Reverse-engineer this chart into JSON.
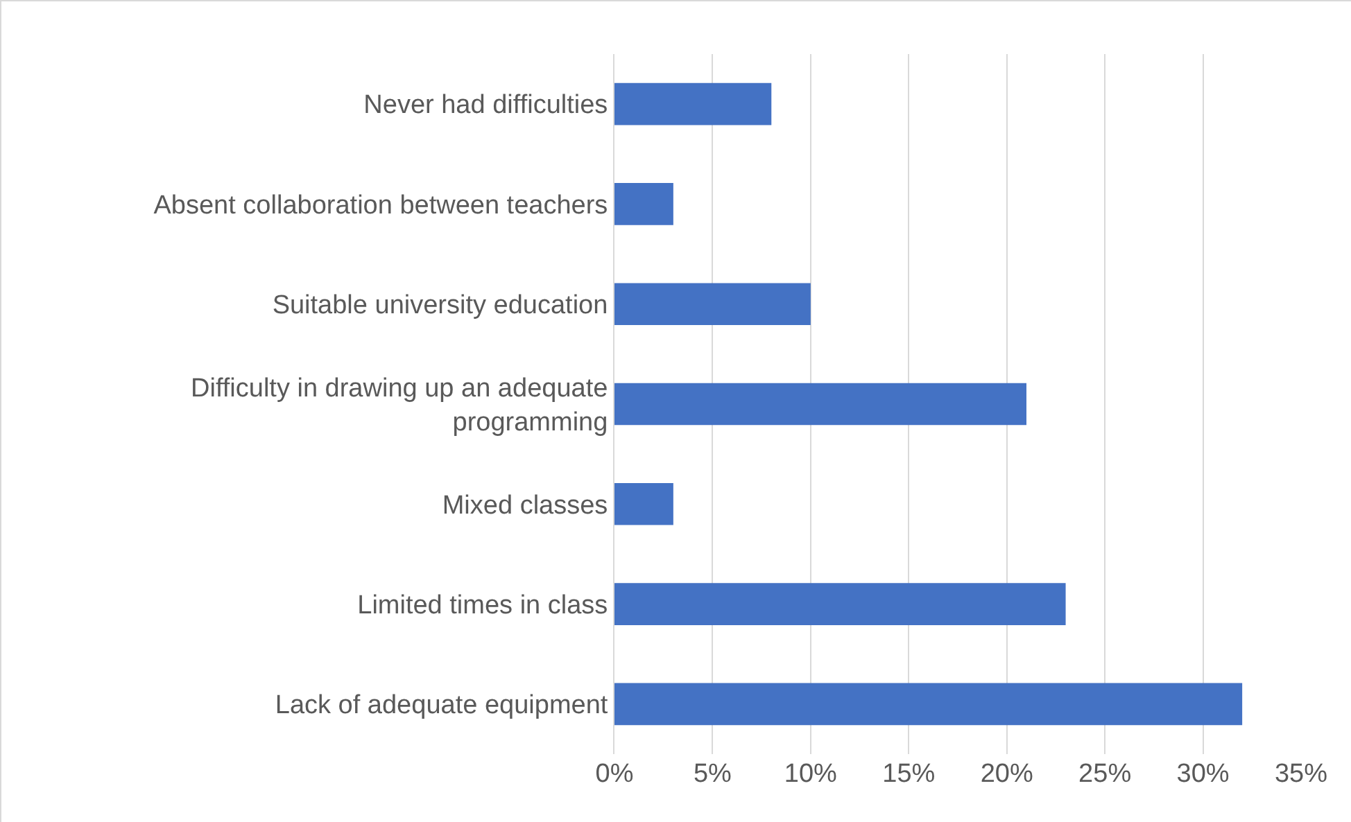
{
  "chart_data": {
    "type": "bar",
    "orientation": "horizontal",
    "categories": [
      "Never had difficulties",
      "Absent collaboration between teachers",
      "Suitable university education",
      "Difficulty in drawing up an adequate programming",
      "Mixed classes",
      "Limited times in class",
      "Lack of adequate equipment"
    ],
    "values": [
      8,
      3,
      10,
      21,
      3,
      23,
      32
    ],
    "color": "#4472c4",
    "xlim": [
      0,
      35
    ],
    "xticks": [
      {
        "value": 0,
        "label": "0%"
      },
      {
        "value": 5,
        "label": "5%"
      },
      {
        "value": 10,
        "label": "10%"
      },
      {
        "value": 15,
        "label": "15%"
      },
      {
        "value": 20,
        "label": "20%"
      },
      {
        "value": 25,
        "label": "25%"
      },
      {
        "value": 30,
        "label": "30%"
      },
      {
        "value": 35,
        "label": "35%"
      }
    ],
    "grid": "x",
    "legend": false
  }
}
